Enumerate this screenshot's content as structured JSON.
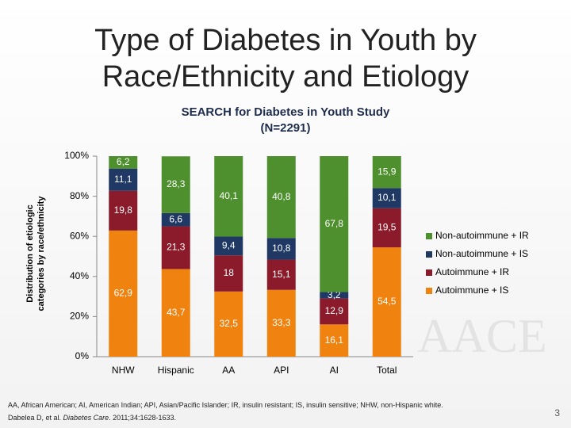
{
  "title": "Type of Diabetes in Youth by Race/Ethnicity and Etiology",
  "footnote": "AA, African American; AI, American Indian; API, Asian/Pacific Islander; IR, insulin resistant; IS, insulin sensitive; NHW, non-Hispanic white.",
  "citation": [
    "Dabelea D, et al. ",
    "Diabetes Care",
    ". 2011;34:1628-1633."
  ],
  "page_number": "3",
  "logo": "AACE",
  "chart_data": {
    "type": "stacked_bar",
    "subtitle": [
      "SEARCH for Diabetes in Youth Study",
      "(N=2291)"
    ],
    "ylabel": [
      "Distribution of etiologic",
      "categories by race/ethnicity"
    ],
    "categories": [
      "NHW",
      "Hispanic",
      "AA",
      "API",
      "AI",
      "Total"
    ],
    "series": [
      {
        "name": "Autoimmune + IS",
        "color": "#f0820f",
        "values": [
          62.9,
          43.7,
          32.5,
          33.3,
          16.1,
          54.5
        ],
        "value_labels": [
          "62,9",
          "43,7",
          "32,5",
          "33,3",
          "16,1",
          "54,5"
        ]
      },
      {
        "name": "Autoimmune + IR",
        "color": "#8b1a2a",
        "values": [
          19.8,
          21.3,
          18,
          15.1,
          12.9,
          19.5
        ],
        "value_labels": [
          "19,8",
          "21,3",
          "18",
          "15,1",
          "12,9",
          "19,5"
        ]
      },
      {
        "name": "Non-autoimmune + IS",
        "color": "#1f3864",
        "values": [
          11.1,
          6.6,
          9.4,
          10.8,
          3.2,
          10.1
        ],
        "value_labels": [
          "11,1",
          "6,6",
          "9,4",
          "10,8",
          "3,2",
          "10,1"
        ]
      },
      {
        "name": "Non-autoimmune + IR",
        "color": "#4e8f2e",
        "values": [
          6.2,
          28.3,
          40.1,
          40.8,
          67.8,
          15.9
        ],
        "value_labels": [
          "6,2",
          "28,3",
          "40,1",
          "40,8",
          "67,8",
          "15,9"
        ]
      }
    ],
    "ylim": [
      0,
      100
    ],
    "yticks": [
      {
        "value": 0,
        "label": "0%"
      },
      {
        "value": 20,
        "label": "20%"
      },
      {
        "value": 40,
        "label": "40%"
      },
      {
        "value": 60,
        "label": "60%"
      },
      {
        "value": 80,
        "label": "80%"
      },
      {
        "value": 100,
        "label": "100%"
      }
    ],
    "legend": "right"
  }
}
